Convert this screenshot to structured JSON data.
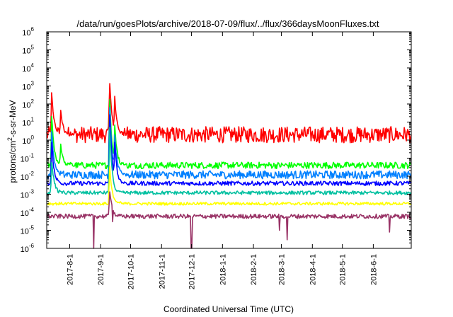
{
  "chart_data": {
    "type": "line",
    "title": "/data/run/goesPlots/archive/2018-07-09/flux/../flux/366daysMoonFluxes.txt",
    "xlabel": "Coordinated Universal Time (UTC)",
    "ylabel": "protons/cm²-s-sr-MeV",
    "yscale": "log",
    "ylim": [
      "1e-6",
      "1e6"
    ],
    "xlim": [
      "2017-07-09",
      "2018-07-09"
    ],
    "grid": false,
    "legend": "none",
    "x_ticks": [
      "2017-8-1",
      "2017-9-1",
      "2017-10-1",
      "2017-11-1",
      "2017-12-1",
      "2018-1-1",
      "2018-2-1",
      "2018-3-1",
      "2018-4-1",
      "2018-5-1",
      "2018-6-1"
    ],
    "y_ticks": [
      "10-6",
      "10-5",
      "10-4",
      "10-3",
      "10-2",
      "10-1",
      "100",
      "101",
      "102",
      "103",
      "104",
      "105",
      "106"
    ],
    "series": [
      {
        "color": "#ff0000",
        "baseline": 2.0,
        "noise_decades": 0.45,
        "events": [
          {
            "date": "2017-07-14",
            "value": 600
          },
          {
            "date": "2017-07-23",
            "value": 50
          },
          {
            "date": "2017-09-10",
            "value": 3000
          },
          {
            "date": "2017-09-15",
            "value": 300
          }
        ]
      },
      {
        "color": "#00ff00",
        "baseline": 0.04,
        "noise_decades": 0.18,
        "events": [
          {
            "date": "2017-07-14",
            "value": 30
          },
          {
            "date": "2017-07-23",
            "value": 0.5
          },
          {
            "date": "2017-09-10",
            "value": 300
          },
          {
            "date": "2017-09-15",
            "value": 10
          }
        ]
      },
      {
        "color": "#0080ff",
        "baseline": 0.012,
        "noise_decades": 0.22,
        "events": [
          {
            "date": "2017-07-14",
            "value": 5
          },
          {
            "date": "2017-09-10",
            "value": 150
          },
          {
            "date": "2017-09-15",
            "value": 3
          }
        ]
      },
      {
        "color": "#0000ff",
        "baseline": 0.004,
        "noise_decades": 0.12,
        "events": [
          {
            "date": "2017-07-14",
            "value": 1
          },
          {
            "date": "2017-09-10",
            "value": 60
          },
          {
            "date": "2017-09-15",
            "value": 1
          }
        ]
      },
      {
        "color": "#00c0a0",
        "baseline": 0.0012,
        "noise_decades": 0.1,
        "events": [
          {
            "date": "2017-07-14",
            "value": 0.1
          },
          {
            "date": "2017-09-10",
            "value": 8
          }
        ]
      },
      {
        "color": "#ffff00",
        "baseline": 0.0003,
        "noise_decades": 0.08,
        "events": [
          {
            "date": "2017-09-10",
            "value": 0.05
          }
        ]
      },
      {
        "color": "#993366",
        "baseline": 6e-05,
        "noise_decades": 0.12,
        "events": [
          {
            "date": "2017-09-10",
            "value": 0.002
          }
        ],
        "dips": [
          {
            "date": "2017-08-25",
            "value": 1e-06
          },
          {
            "date": "2017-09-13",
            "value": 3e-05
          },
          {
            "date": "2017-12-01",
            "value": 1e-06
          },
          {
            "date": "2018-02-27",
            "value": 1e-05
          },
          {
            "date": "2018-03-07",
            "value": 3e-06
          },
          {
            "date": "2018-06-17",
            "value": 8e-06
          }
        ]
      }
    ]
  }
}
